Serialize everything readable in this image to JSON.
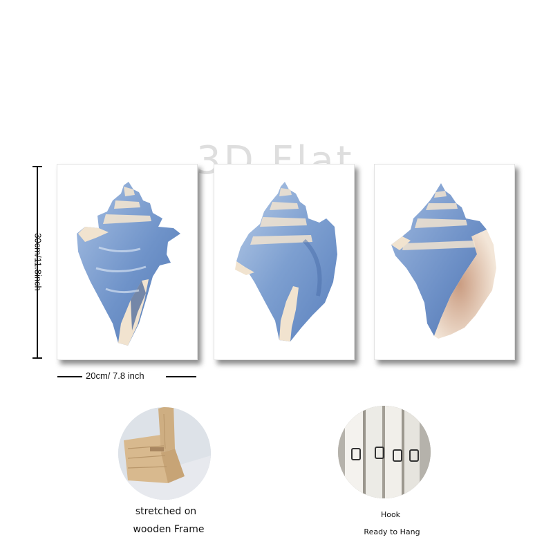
{
  "watermark": "3D Flat",
  "dimensions": {
    "height_label": "30cm/11.8inch",
    "width_label": "20cm/ 7.8 inch"
  },
  "panels": [
    {
      "name": "shell-print-1",
      "icon": "conch-shell-icon"
    },
    {
      "name": "shell-print-2",
      "icon": "conch-shell-icon"
    },
    {
      "name": "shell-print-3",
      "icon": "conch-shell-icon"
    }
  ],
  "features": {
    "frame": {
      "line1": "stretched on",
      "line2": "wooden Frame"
    },
    "hook": {
      "line1": "Hook",
      "line2": "Ready to Hang"
    }
  },
  "colors": {
    "shell_blue": "#6f93c9",
    "shell_light_blue": "#a9c1e3",
    "shell_cream": "#f1e3cf",
    "shell_peach": "#e3bfa6",
    "wood": "#d8b98e"
  }
}
